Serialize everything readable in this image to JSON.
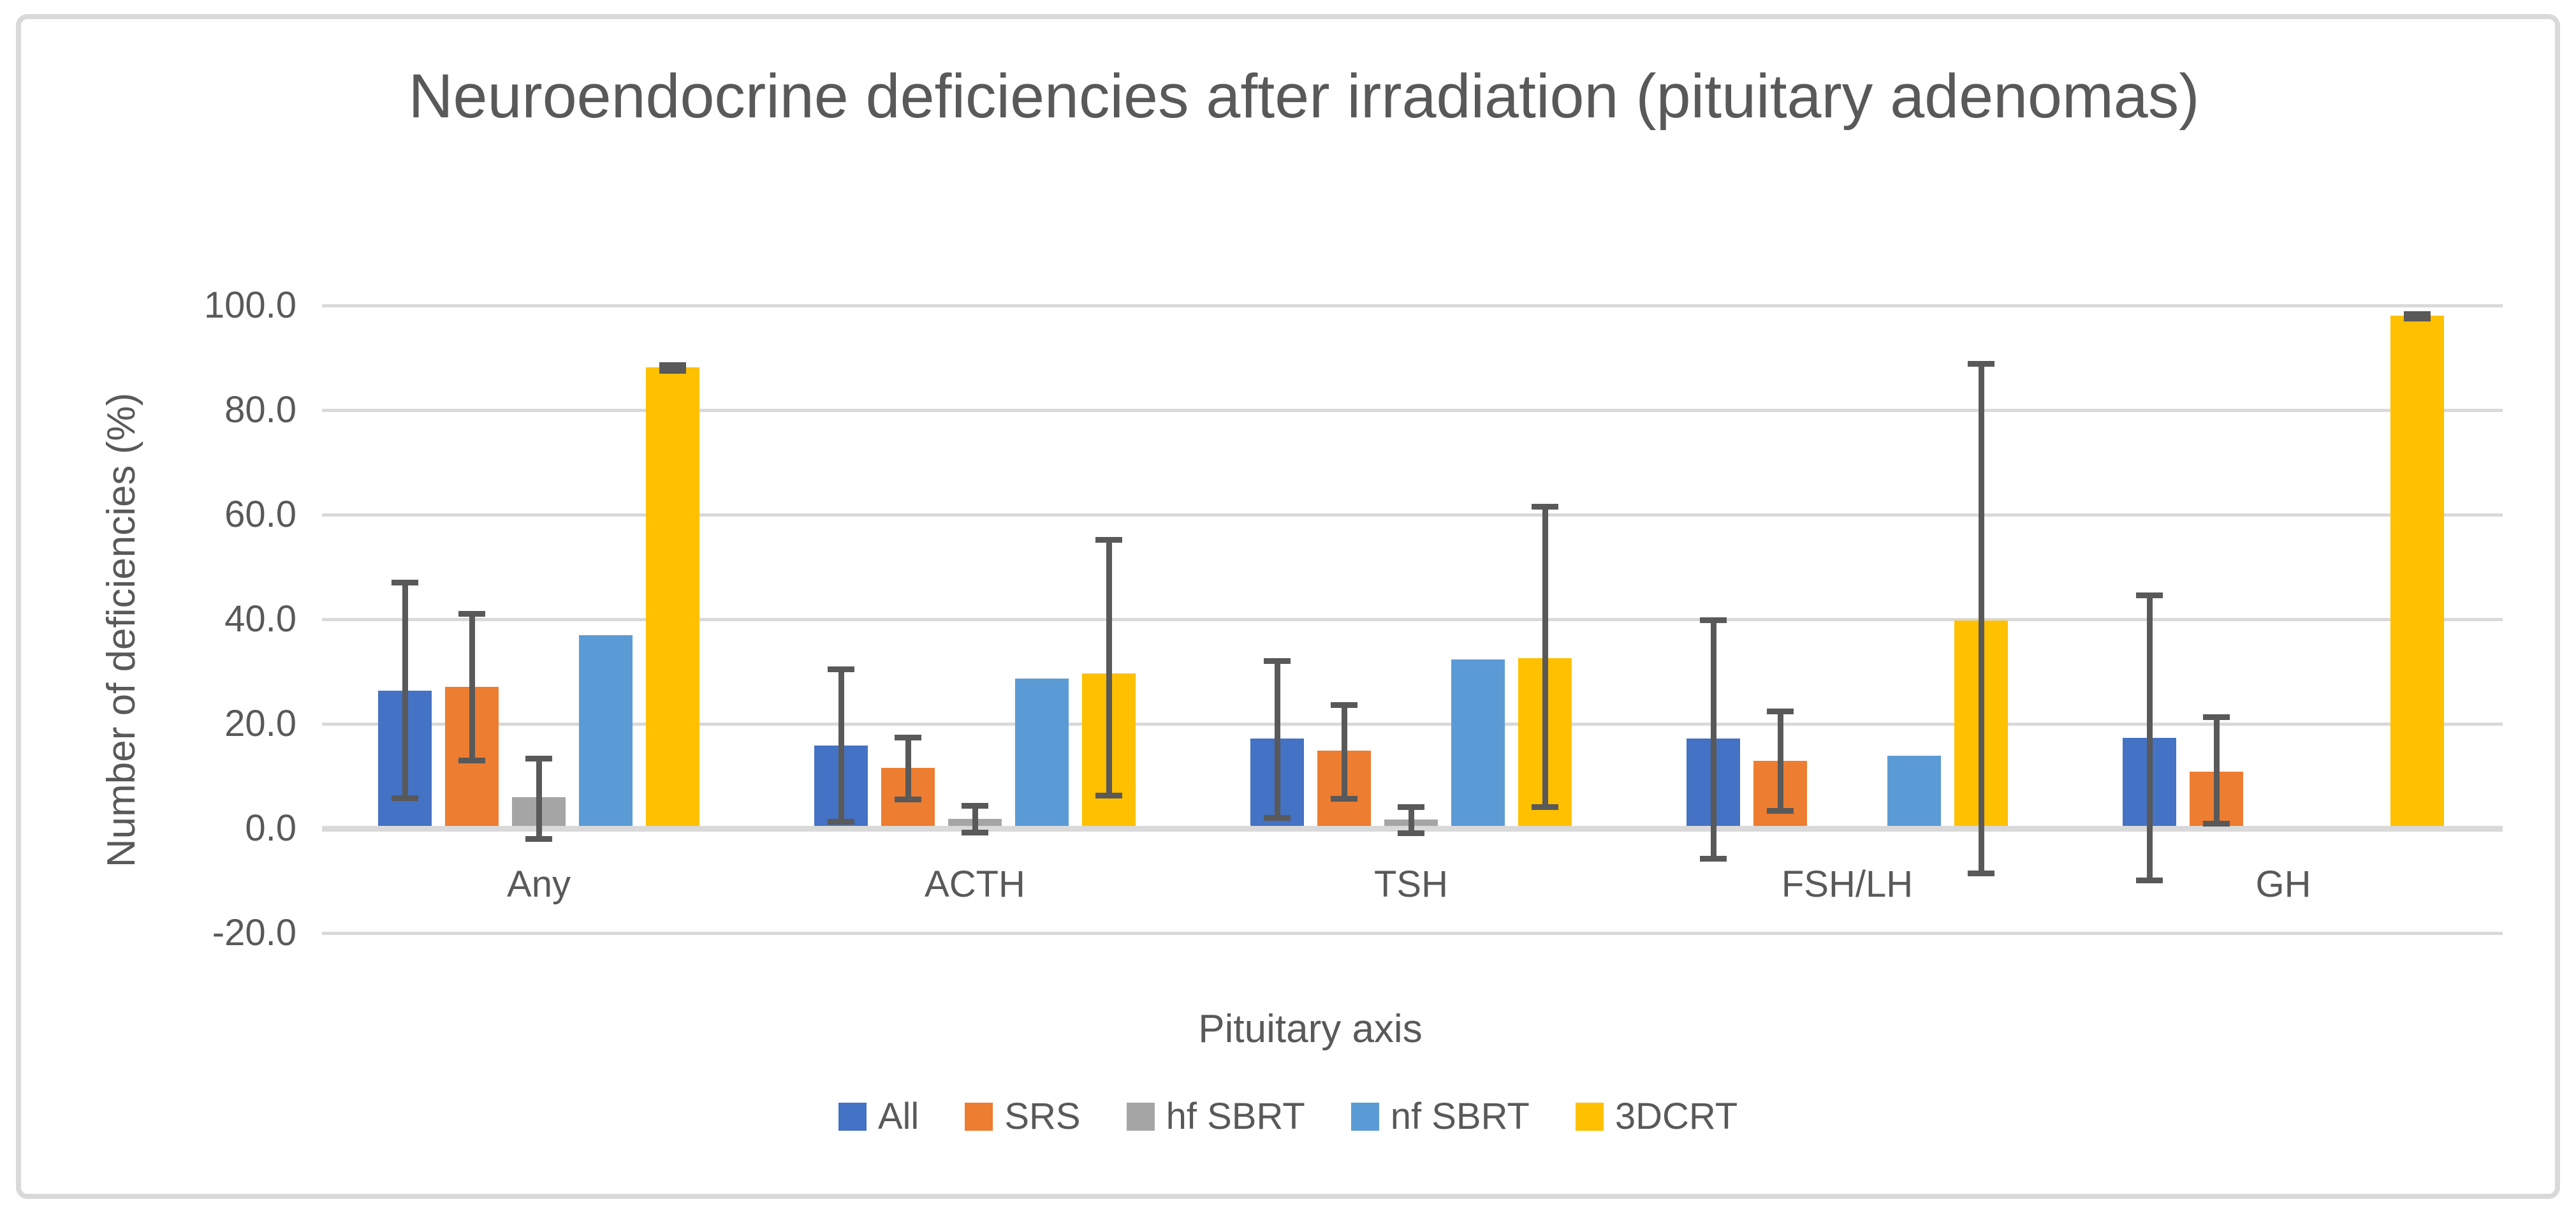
{
  "frame": {
    "background": "#FFFFFF",
    "border_color": "#D9D9D9"
  },
  "text_color": "#595959",
  "chart_data": {
    "type": "bar",
    "title": "Neuroendocrine deficiencies after irradiation (pituitary adenomas)",
    "xlabel": "Pituitary axis",
    "ylabel": "Number of deficiencies (%)",
    "ylim": [
      -20,
      100
    ],
    "ytick_step": 20,
    "y_ticks": [
      "100.0",
      "80.0",
      "60.0",
      "40.0",
      "20.0",
      "0.0",
      "-20.0"
    ],
    "grid": true,
    "gridline_color": "#D9D9D9",
    "error_bar_color": "#595959",
    "legend_position": "bottom",
    "categories": [
      "Any",
      "ACTH",
      "TSH",
      "FSH/LH",
      "GH"
    ],
    "series": [
      {
        "name": "All",
        "color": "#4472C4",
        "values": [
          26.4,
          15.8,
          17.2,
          17.2,
          17.3
        ],
        "err_low": [
          5.9,
          1.3,
          2.1,
          -5.7,
          -9.9
        ],
        "err_high": [
          47.1,
          30.5,
          32.1,
          39.9,
          44.6
        ]
      },
      {
        "name": "SRS",
        "color": "#ED7D31",
        "values": [
          27.1,
          11.6,
          14.9,
          12.9,
          10.9
        ],
        "err_low": [
          13.0,
          5.6,
          5.7,
          3.4,
          1.0
        ],
        "err_high": [
          41.1,
          17.4,
          23.7,
          22.5,
          21.4
        ]
      },
      {
        "name": "hf SBRT",
        "color": "#A5A5A5",
        "values": [
          6.0,
          1.8,
          1.7,
          null,
          null
        ],
        "err_low": [
          -2.0,
          -0.7,
          -0.9,
          null,
          null
        ],
        "err_high": [
          13.4,
          4.4,
          4.1,
          null,
          null
        ]
      },
      {
        "name": "nf SBRT",
        "color": "#5B9BD5",
        "values": [
          37.0,
          28.6,
          32.3,
          13.9,
          null
        ],
        "err_low": [
          null,
          null,
          null,
          null,
          null
        ],
        "err_high": [
          null,
          null,
          null,
          null,
          null
        ]
      },
      {
        "name": "3DCRT",
        "color": "#FFC000",
        "values": [
          88.2,
          29.6,
          32.6,
          39.8,
          98.0
        ],
        "err_low": [
          87.6,
          6.4,
          4.1,
          -8.5,
          97.6
        ],
        "err_high": [
          88.7,
          55.3,
          61.6,
          88.9,
          98.4
        ]
      }
    ]
  }
}
